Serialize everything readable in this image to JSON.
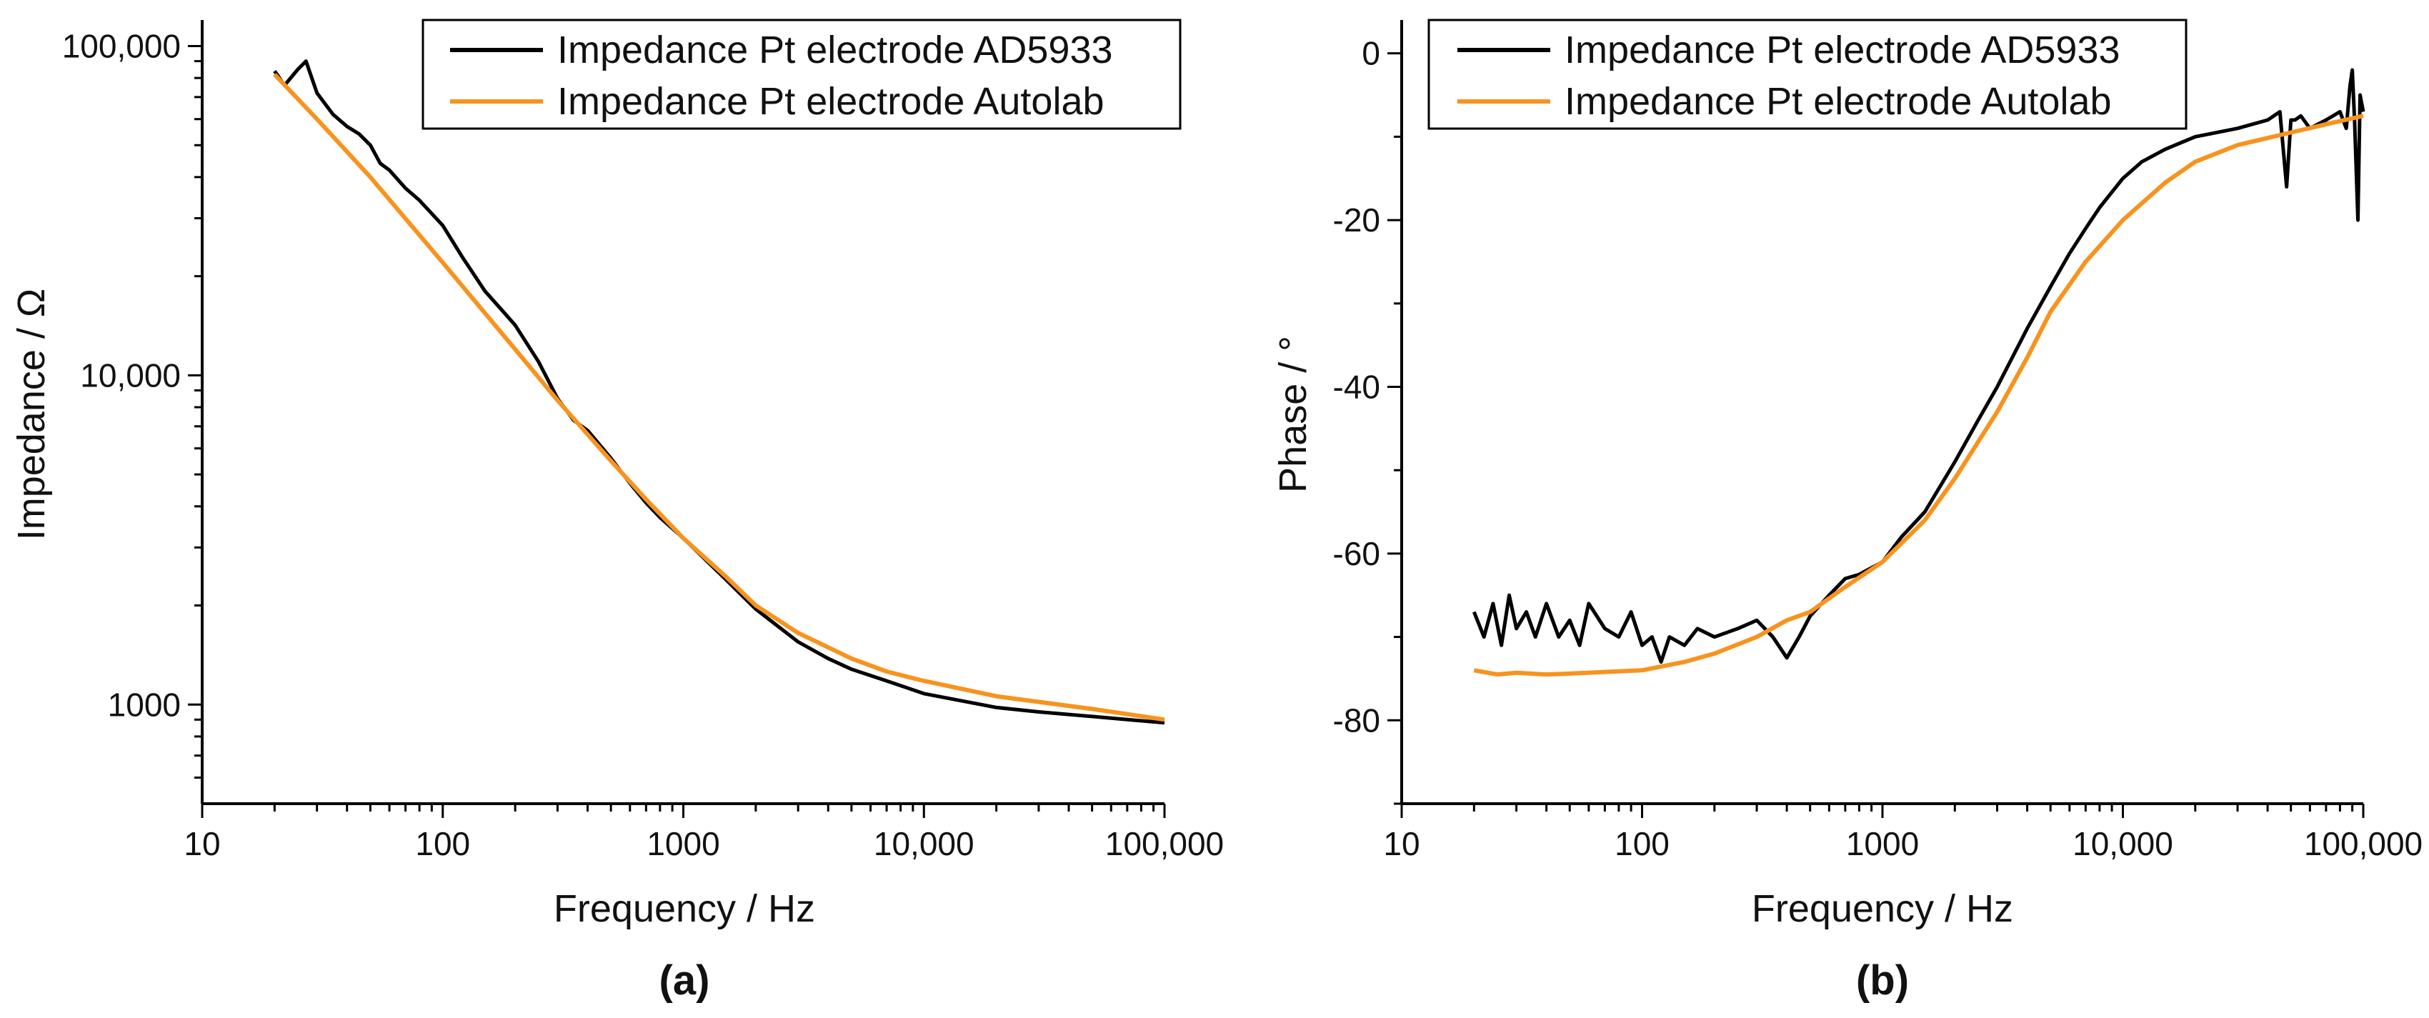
{
  "chart_data": [
    {
      "type": "line",
      "panel_label": "(a)",
      "xscale": "log",
      "yscale": "log",
      "xlabel": "Frequency / Hz",
      "ylabel": "Impedance / Ω",
      "xlim": [
        10,
        100000
      ],
      "ylim": [
        500,
        120000
      ],
      "xticks": [
        10,
        100,
        1000,
        10000,
        100000
      ],
      "xtick_labels": [
        "10",
        "100",
        "1000",
        "10,000",
        "100,000"
      ],
      "yticks": [
        1000,
        10000,
        100000
      ],
      "ytick_labels": [
        "1000",
        "10,000",
        "100,000"
      ],
      "legend_position": "top-right",
      "series": [
        {
          "name": "Impedance Pt electrode AD5933",
          "color": "#000000",
          "x": [
            20,
            22,
            25,
            27,
            30,
            35,
            40,
            45,
            50,
            55,
            60,
            70,
            80,
            90,
            100,
            120,
            150,
            180,
            200,
            250,
            300,
            350,
            400,
            500,
            600,
            700,
            800,
            1000,
            1500,
            2000,
            3000,
            4000,
            5000,
            7000,
            10000,
            20000,
            30000,
            50000,
            70000,
            100000
          ],
          "y": [
            84000,
            76000,
            85000,
            90000,
            72000,
            62000,
            57000,
            54000,
            50000,
            44000,
            42000,
            37000,
            34000,
            31000,
            28500,
            23000,
            18000,
            15500,
            14200,
            11000,
            8500,
            7300,
            6800,
            5600,
            4700,
            4100,
            3700,
            3200,
            2400,
            1950,
            1550,
            1380,
            1280,
            1180,
            1080,
            980,
            950,
            920,
            900,
            880
          ]
        },
        {
          "name": "Impedance Pt electrode Autolab",
          "color": "#F7931E",
          "x": [
            20,
            30,
            50,
            100,
            200,
            300,
            500,
            700,
            1000,
            1500,
            2000,
            3000,
            5000,
            7000,
            10000,
            20000,
            50000,
            100000
          ],
          "y": [
            82000,
            60000,
            40000,
            22000,
            12000,
            8400,
            5500,
            4200,
            3200,
            2450,
            2000,
            1650,
            1380,
            1260,
            1180,
            1060,
            970,
            900
          ]
        }
      ]
    },
    {
      "type": "line",
      "panel_label": "(b)",
      "xscale": "log",
      "yscale": "linear",
      "xlabel": "Frequency / Hz",
      "ylabel": "Phase / °",
      "xlim": [
        10,
        100000
      ],
      "ylim": [
        -90,
        4
      ],
      "xticks": [
        10,
        100,
        1000,
        10000,
        100000
      ],
      "xtick_labels": [
        "10",
        "100",
        "1000",
        "10,000",
        "100,000"
      ],
      "yticks": [
        0,
        -20,
        -40,
        -60,
        -80
      ],
      "ytick_labels": [
        "0",
        "-20",
        "-40",
        "-60",
        "-80"
      ],
      "legend_position": "top-left",
      "series": [
        {
          "name": "Impedance Pt electrode AD5933",
          "color": "#000000",
          "x": [
            20,
            22,
            24,
            26,
            28,
            30,
            33,
            36,
            40,
            45,
            50,
            55,
            60,
            70,
            80,
            90,
            100,
            110,
            120,
            130,
            150,
            170,
            200,
            250,
            300,
            350,
            400,
            450,
            500,
            600,
            700,
            800,
            1000,
            1200,
            1500,
            2000,
            2500,
            3000,
            4000,
            5000,
            6000,
            7000,
            8000,
            10000,
            12000,
            15000,
            20000,
            30000,
            40000,
            45000,
            48000,
            50000,
            52000,
            55000,
            60000,
            70000,
            80000,
            85000,
            88000,
            90000,
            92000,
            95000,
            97000,
            100000
          ],
          "y": [
            -67,
            -70,
            -66,
            -71,
            -65,
            -69,
            -67,
            -70,
            -66,
            -70,
            -68,
            -71,
            -66,
            -69,
            -70,
            -67,
            -71,
            -70,
            -73,
            -70,
            -71,
            -69,
            -70,
            -69,
            -68,
            -70,
            -72.5,
            -70,
            -67.5,
            -65,
            -63,
            -62.5,
            -61,
            -58,
            -55,
            -49,
            -44,
            -40,
            -33,
            -28,
            -24,
            -21,
            -18.5,
            -15,
            -13,
            -11.5,
            -10,
            -9,
            -8,
            -7,
            -16,
            -8,
            -8,
            -7.5,
            -9,
            -8,
            -7,
            -9,
            -4,
            -2,
            -8,
            -20,
            -5,
            -7
          ]
        },
        {
          "name": "Impedance Pt electrode Autolab",
          "color": "#F7931E",
          "x": [
            20,
            25,
            30,
            40,
            50,
            70,
            100,
            150,
            200,
            300,
            400,
            500,
            700,
            1000,
            1500,
            2000,
            3000,
            4000,
            5000,
            7000,
            10000,
            15000,
            20000,
            30000,
            50000,
            70000,
            100000
          ],
          "y": [
            -74,
            -74.5,
            -74.3,
            -74.5,
            -74.4,
            -74.2,
            -74,
            -73,
            -72,
            -70,
            -68,
            -67,
            -64,
            -61,
            -56,
            -51,
            -43,
            -36.5,
            -31,
            -25,
            -20,
            -15.5,
            -13,
            -11,
            -9.5,
            -8.5,
            -7.5
          ]
        }
      ]
    }
  ]
}
